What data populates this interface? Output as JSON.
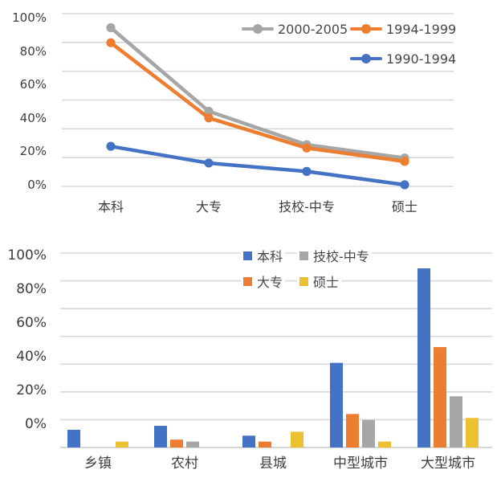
{
  "figure": {
    "description": "two stacked charts: education-level line trend chart and education-by-city-size grouped bar chart",
    "background": "#ffffff"
  },
  "colors": {
    "blue": "#4472c4",
    "orange": "#ed7d31",
    "gray": "#a6a6a6",
    "yellow": "#edc032",
    "gridline": "#d8d8d8",
    "axis_line": "#c9c9c9",
    "text": "#3d3d3d"
  },
  "chart_data": [
    {
      "id": "education-trend-line-chart",
      "type": "line",
      "title": "",
      "categories": [
        "本科",
        "大专",
        "技校-中专",
        "硕士"
      ],
      "series": [
        {
          "name": "2000-2005",
          "color": "#a6a6a6",
          "values": [
            94,
            44,
            24,
            16
          ]
        },
        {
          "name": "1994-1999",
          "color": "#ed7d31",
          "values": [
            85,
            40,
            22,
            14
          ]
        },
        {
          "name": "1990-1994",
          "color": "#4472c4",
          "values": [
            23,
            13,
            8,
            0
          ]
        }
      ],
      "y_ticks": [
        "100%",
        "80%",
        "60%",
        "40%",
        "20%",
        "0%"
      ],
      "xlabel": "",
      "ylabel": "",
      "ylim": [
        0,
        100
      ],
      "grid": true,
      "legend_position": "top-right"
    },
    {
      "id": "education-by-city-bar-chart",
      "type": "bar",
      "title": "",
      "categories": [
        "乡镇",
        "农村",
        "县城",
        "中型城市",
        "大型城市"
      ],
      "series": [
        {
          "name": "本科",
          "color": "#4472c4",
          "values": [
            9,
            11,
            6,
            43,
            91
          ]
        },
        {
          "name": "大专",
          "color": "#ed7d31",
          "values": [
            0,
            4,
            3,
            17,
            51
          ]
        },
        {
          "name": "技校-中专",
          "color": "#a6a6a6",
          "values": [
            0,
            3,
            0,
            14,
            26
          ]
        },
        {
          "name": "硕士",
          "color": "#edc032",
          "values": [
            3,
            0,
            8,
            3,
            15
          ]
        }
      ],
      "y_ticks": [
        "100%",
        "80%",
        "60%",
        "40%",
        "20%",
        "0%"
      ],
      "xlabel": "",
      "ylabel": "",
      "ylim": [
        0,
        100
      ],
      "grid": true,
      "legend_position": "top-center"
    }
  ]
}
